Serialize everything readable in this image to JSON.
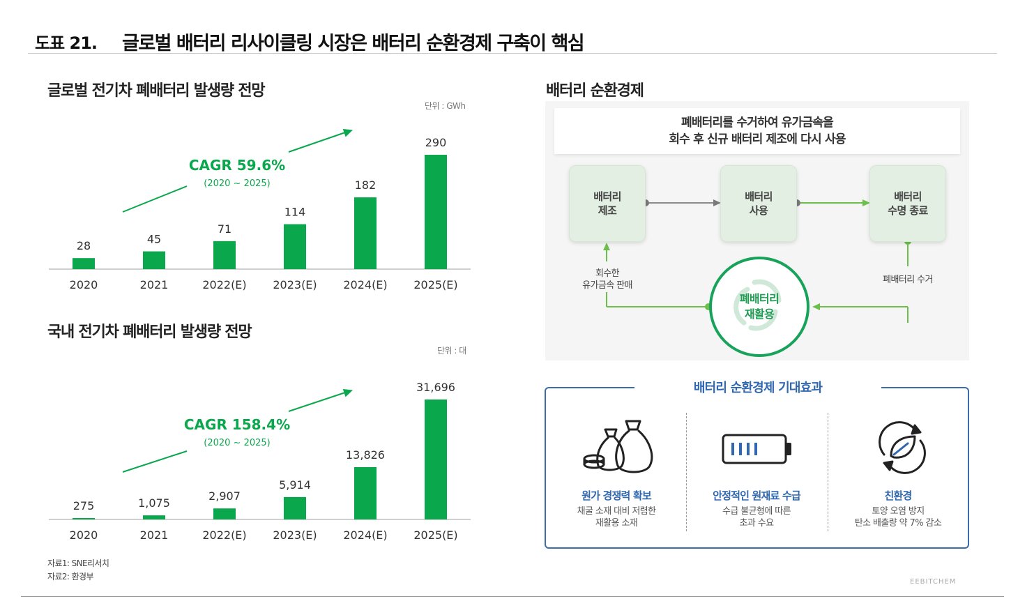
{
  "header": {
    "figure_no": "도표 21.",
    "title": "글로벌 배터리 리사이클링 시장은 배터리 순환경제 구축이 핵심"
  },
  "chart_data": [
    {
      "type": "bar",
      "title": "글로벌 전기차 폐배터리 발생량 전망",
      "unit_label": "단위 : GWh",
      "categories": [
        "2020",
        "2021",
        "2022(E)",
        "2023(E)",
        "2024(E)",
        "2025(E)"
      ],
      "values": [
        28,
        45,
        71,
        114,
        182,
        290
      ],
      "value_labels": [
        "28",
        "45",
        "71",
        "114",
        "182",
        "290"
      ],
      "ylim": [
        0,
        300
      ],
      "annotation": {
        "cagr": "CAGR 59.6%",
        "period": "(2020 ~ 2025)"
      },
      "color": "#0aa74d"
    },
    {
      "type": "bar",
      "title": "국내 전기차 폐배터리 발생량 전망",
      "unit_label": "단위 : 대",
      "categories": [
        "2020",
        "2021",
        "2022(E)",
        "2023(E)",
        "2024(E)",
        "2025(E)"
      ],
      "values": [
        275,
        1075,
        2907,
        5914,
        13826,
        31696
      ],
      "value_labels": [
        "275",
        "1,075",
        "2,907",
        "5,914",
        "13,826",
        "31,696"
      ],
      "ylim": [
        0,
        32000
      ],
      "annotation": {
        "cagr": "CAGR 158.4%",
        "period": "(2020 ~ 2025)"
      },
      "color": "#0aa74d"
    }
  ],
  "sources": [
    "자료1: SNE리서치",
    "자료2: 환경부"
  ],
  "circular": {
    "title": "배터리 순환경제",
    "banner_line1": "폐배터리를 수거하여 유가금속을",
    "banner_line2": "회수 후 신규 배터리 제조에 다시 사용",
    "stages": [
      {
        "line1": "배터리",
        "line2": "제조"
      },
      {
        "line1": "배터리",
        "line2": "사용"
      },
      {
        "line1": "배터리",
        "line2": "수명 종료"
      }
    ],
    "recycle_line1": "폐배터리",
    "recycle_line2": "재활용",
    "left_note_line1": "회수한",
    "left_note_line2": "유가금속 판매",
    "right_note": "폐배터리 수거"
  },
  "effects": {
    "title": "배터리 순환경제 기대효과",
    "items": [
      {
        "icon": "money-bags-icon",
        "title": "원가 경쟁력 확보",
        "desc1": "채굴 소재 대비 저렴한",
        "desc2": "재활용 소재"
      },
      {
        "icon": "battery-icon",
        "title": "안정적인 원재료 수급",
        "desc1": "수급 불균형에 따른",
        "desc2": "초과 수요"
      },
      {
        "icon": "eco-leaf-icon",
        "title": "친환경",
        "desc1": "토양 오염 방지",
        "desc2": "탄소 배출량 약 7% 감소"
      }
    ]
  },
  "brand": "EEBITCHEM",
  "colors": {
    "bar": "#0aa74d",
    "accent_blue": "#2f67b0",
    "flow_green": "#6cbf4a",
    "grey": "#777777"
  }
}
